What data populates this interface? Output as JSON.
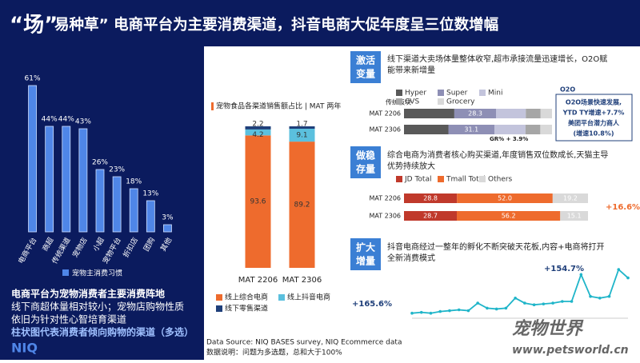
{
  "title_quote": "“场”",
  "title_rest": "易种草” 电商平台为主要消费渠道，抖音电商大促年度呈三位数增幅",
  "notes": [
    "电商平台为宠物消费者主要消费阵地",
    "线下商超体量相对较小；宠物店购物性质",
    "依旧为针对性心智培育渠道",
    "柱状图代表消费者倾向购物的渠道（多选）"
  ],
  "logo": "NIQ",
  "footer": {
    "source": "Data Source: NIQ BASES survey, NIQ Ecommerce data",
    "note": "数据说明：问题为多选题，总和大于100%"
  },
  "watermark": [
    "宠物世界",
    "www.petsworld.cn"
  ],
  "sections": [
    {
      "tag": [
        "激活",
        "变量"
      ],
      "text": [
        "线下渠道大卖场体量整体收窄,超市承接流量迅速增长，O2O赋",
        "能带来新增量"
      ]
    },
    {
      "tag": [
        "做稳",
        "存量"
      ],
      "text": [
        "综合电商为消费者核心购买渠道,年度销售双位数成长,天猫主导",
        "优势持续放大"
      ]
    },
    {
      "tag": [
        "扩大",
        "增量"
      ],
      "text": [
        "抖音电商经过一整年的孵化不断突破天花板,内容+电商将打开",
        "全新消费模式"
      ]
    }
  ],
  "o2o": {
    "label": "O2O",
    "text": [
      "O2O场景快速发展,",
      "YTD TY增速+7.7%",
      "美团平台潜力商人",
      "(增速10.8%)"
    ]
  },
  "chart_data": [
    {
      "type": "bar",
      "categories": [
        "电商平台",
        "商超",
        "传统渠道",
        "宠物店",
        "小超",
        "宠物平台",
        "折扣店",
        "团购",
        "其他"
      ],
      "values": [
        61,
        44,
        44,
        43,
        26,
        23,
        18,
        13,
        3
      ],
      "value_labels": [
        "61%",
        "44%",
        "44%",
        "43%",
        "26%",
        "23%",
        "18%",
        "13%",
        "3%"
      ],
      "color": "#4f86e8",
      "legend": "宠物主消费习惯",
      "ylim": [
        0,
        70
      ]
    },
    {
      "type": "stacked_bar",
      "title": "宠物食品各渠道销售额占比 | MAT 两年",
      "categories": [
        "MAT 2206",
        "MAT 2306"
      ],
      "series": [
        {
          "name": "线上综合电商",
          "color": "#ee6b2d",
          "values": [
            93.6,
            89.2
          ]
        },
        {
          "name": "线上抖音电商",
          "color": "#5bc0de",
          "values": [
            4.2,
            9.1
          ]
        },
        {
          "name": "线下零售渠道",
          "color": "#1f3f7a",
          "values": [
            2.2,
            1.7
          ]
        }
      ],
      "ylim": [
        0,
        100
      ]
    },
    {
      "type": "stacked_barh",
      "row_title": "传统板块",
      "categories": [
        "MAT 2206",
        "MAT 2306"
      ],
      "series": [
        {
          "name": "Hyper",
          "color": "#595959",
          "values": [
            34,
            30
          ],
          "value_labels": [
            null,
            null
          ]
        },
        {
          "name": "Super",
          "color": "#8e8fb5",
          "values": [
            28.3,
            31.1
          ]
        },
        {
          "name": "Mini",
          "color": "#c3c4dc",
          "values": [
            20,
            21
          ],
          "value_labels": [
            null,
            null
          ]
        },
        {
          "name": "CVS",
          "color": "#a6a6a6",
          "values": [
            10,
            10
          ],
          "value_labels": [
            null,
            null
          ]
        },
        {
          "name": "Grocery",
          "color": "#d9d9d9",
          "values": [
            7.7,
            7.9
          ],
          "value_labels": [
            null,
            null
          ]
        }
      ],
      "xlim": [
        0,
        100
      ],
      "annotation": "GR% + 3.9%"
    },
    {
      "type": "stacked_barh",
      "categories": [
        "MAT 2206",
        "MAT 2306"
      ],
      "series": [
        {
          "name": "JD Total",
          "color": "#c0392b",
          "values": [
            28.8,
            28.7
          ]
        },
        {
          "name": "Tmall Total",
          "color": "#ee6b2d",
          "values": [
            52.0,
            56.2
          ],
          "value_labels": [
            "52.0",
            "56.2"
          ]
        },
        {
          "name": "Others",
          "color": "#d9d9d9",
          "values": [
            19.2,
            15.1
          ]
        }
      ],
      "xlim": [
        0,
        100
      ],
      "annotation": "+16.6%"
    },
    {
      "type": "line",
      "categories": [
        null,
        null,
        null,
        null,
        null,
        null,
        null,
        null,
        null,
        null,
        null,
        null,
        null,
        null,
        null,
        null,
        null,
        null,
        null,
        null,
        null,
        null,
        null,
        null
      ],
      "values": [
        0.3,
        0.35,
        0.3,
        0.4,
        0.45,
        0.5,
        0.45,
        0.9,
        0.6,
        0.55,
        0.6,
        1.2,
        0.9,
        0.8,
        0.85,
        0.9,
        1.0,
        1.0,
        2.6,
        1.3,
        1.2,
        1.3,
        2.9,
        2.4
      ],
      "color": "#1fb5c9",
      "ylim": [
        0,
        3
      ],
      "annotations": [
        "+154.7%",
        "+165.6%"
      ]
    }
  ]
}
